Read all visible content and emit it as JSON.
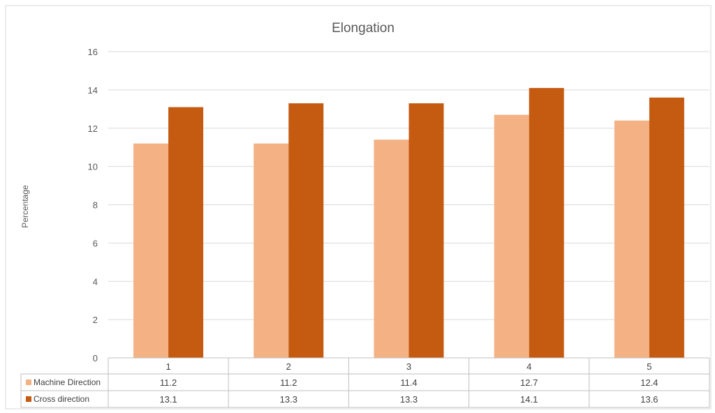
{
  "chart_data": {
    "type": "bar",
    "title": "Elongation",
    "xlabel": "",
    "ylabel": "Percentage",
    "categories": [
      "1",
      "2",
      "3",
      "4",
      "5"
    ],
    "ylim": [
      0,
      16
    ],
    "yticks": [
      "0",
      "2",
      "4",
      "6",
      "8",
      "10",
      "12",
      "14",
      "16"
    ],
    "grid": true,
    "legend": "data-table",
    "series": [
      {
        "name": "Machine Direction",
        "color": "#f4b183",
        "values": [
          11.2,
          11.2,
          11.4,
          12.7,
          12.4
        ]
      },
      {
        "name": "Cross direction",
        "color": "#c55a11",
        "values": [
          13.1,
          13.3,
          13.3,
          14.1,
          13.6
        ]
      }
    ]
  }
}
